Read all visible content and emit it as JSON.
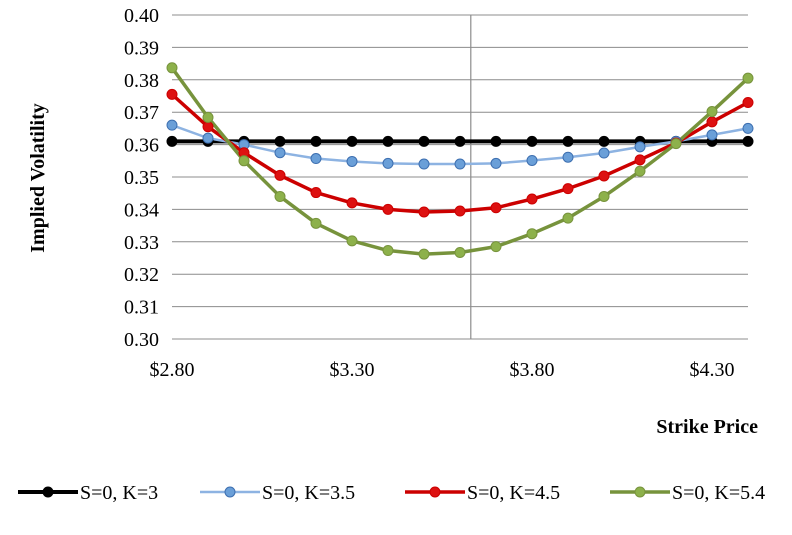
{
  "chart_data": {
    "type": "line",
    "title": "",
    "xlabel": "Strike Price",
    "ylabel": "Implied Volatility",
    "xlim": [
      2.8,
      4.4
    ],
    "ylim": [
      0.3,
      0.4
    ],
    "x_ticks": [
      2.8,
      3.3,
      3.8,
      4.3
    ],
    "x_tick_labels": [
      "$2.80",
      "$3.30",
      "$3.80",
      "$4.30"
    ],
    "y_ticks": [
      0.3,
      0.31,
      0.32,
      0.33,
      0.34,
      0.35,
      0.36,
      0.37,
      0.38,
      0.39,
      0.4
    ],
    "y_tick_labels": [
      "0.30",
      "0.31",
      "0.32",
      "0.33",
      "0.34",
      "0.35",
      "0.36",
      "0.37",
      "0.38",
      "0.39",
      "0.40"
    ],
    "grid": "horizontal",
    "vertical_reference_x": 3.63,
    "legend_position": "bottom",
    "x": [
      2.8,
      2.9,
      3.0,
      3.1,
      3.2,
      3.3,
      3.4,
      3.5,
      3.6,
      3.7,
      3.8,
      3.9,
      4.0,
      4.1,
      4.2,
      4.3,
      4.4
    ],
    "series": [
      {
        "name": "S=0, K=3",
        "color": "#000000",
        "marker_fill": "#000000",
        "values": [
          0.361,
          0.361,
          0.361,
          0.361,
          0.361,
          0.361,
          0.361,
          0.361,
          0.361,
          0.361,
          0.361,
          0.361,
          0.361,
          0.361,
          0.361,
          0.361,
          0.361
        ]
      },
      {
        "name": "S=0, K=3.5",
        "color": "#8db3e2",
        "marker_fill": "#6a9fd8",
        "values": [
          0.366,
          0.362,
          0.36,
          0.3575,
          0.3557,
          0.3548,
          0.3542,
          0.354,
          0.354,
          0.3542,
          0.3551,
          0.3561,
          0.3574,
          0.3593,
          0.361,
          0.363,
          0.365
        ]
      },
      {
        "name": "S=0, K=4.5",
        "color": "#cc0000",
        "marker_fill": "#dd1111",
        "values": [
          0.3755,
          0.3655,
          0.3575,
          0.3505,
          0.3452,
          0.342,
          0.34,
          0.3392,
          0.3395,
          0.3405,
          0.3432,
          0.3464,
          0.3503,
          0.3553,
          0.3605,
          0.367,
          0.373
        ]
      },
      {
        "name": "S=0, K=5.4",
        "color": "#77933c",
        "marker_fill": "#8db14b",
        "values": [
          0.3837,
          0.3684,
          0.355,
          0.344,
          0.3357,
          0.3303,
          0.3273,
          0.3262,
          0.3267,
          0.3285,
          0.3325,
          0.3373,
          0.344,
          0.3518,
          0.3603,
          0.3702,
          0.3805
        ]
      }
    ]
  }
}
